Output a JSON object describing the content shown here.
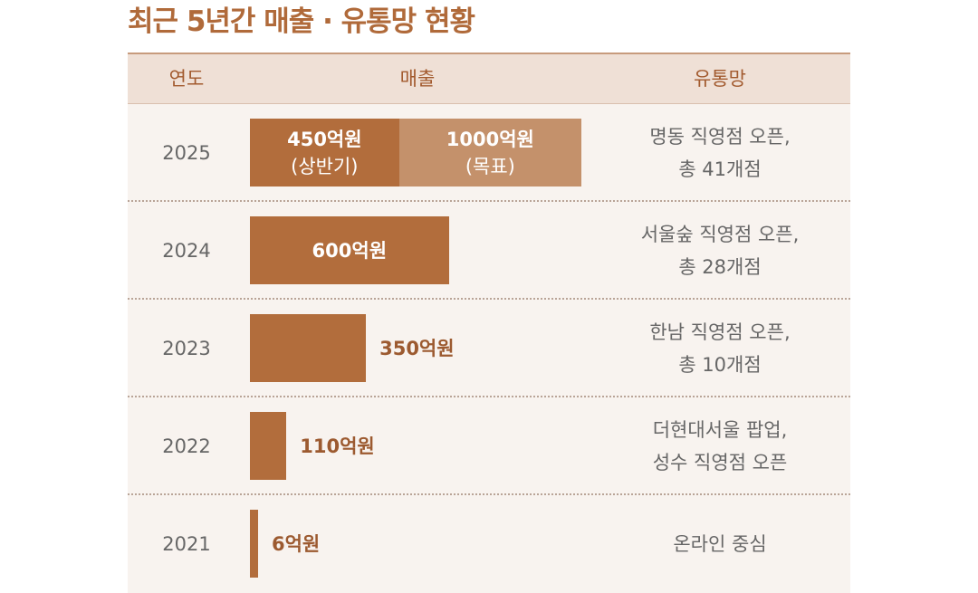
{
  "title": "최근 5년간 매출 · 유통망 현황",
  "headers": {
    "year": "연도",
    "sales": "매출",
    "distribution": "유통망"
  },
  "colors": {
    "actual_bar": "#b26d3c",
    "target_bar": "#c4916b",
    "title": "#b06a3a"
  },
  "chart_data": {
    "type": "bar",
    "orientation": "horizontal",
    "title": "최근 5년간 매출 · 유통망 현황",
    "unit": "억원",
    "categories": [
      "2025",
      "2024",
      "2023",
      "2022",
      "2021"
    ],
    "series": [
      {
        "name": "매출",
        "values": [
          450,
          600,
          350,
          110,
          6
        ]
      },
      {
        "name": "목표",
        "values": [
          1000,
          null,
          null,
          null,
          null
        ]
      }
    ],
    "xlim": [
      0,
      1000
    ],
    "grid": false,
    "rows": [
      {
        "year": "2025",
        "value": 450,
        "label": "450억원",
        "sublabel": "(상반기)",
        "target": 1000,
        "target_label": "1000억원",
        "target_sublabel": "(목표)",
        "dist1": "명동 직영점 오픈,",
        "dist2": "총 41개점"
      },
      {
        "year": "2024",
        "value": 600,
        "label": "600억원",
        "dist1": "서울숲 직영점 오픈,",
        "dist2": "총 28개점"
      },
      {
        "year": "2023",
        "value": 350,
        "label": "350억원",
        "dist1": "한남 직영점 오픈,",
        "dist2": "총 10개점"
      },
      {
        "year": "2022",
        "value": 110,
        "label": "110억원",
        "dist1": "더현대서울 팝업,",
        "dist2": "성수 직영점 오픈"
      },
      {
        "year": "2021",
        "value": 6,
        "label": "6억원",
        "dist1": "온라인 중심",
        "dist2": ""
      }
    ]
  }
}
